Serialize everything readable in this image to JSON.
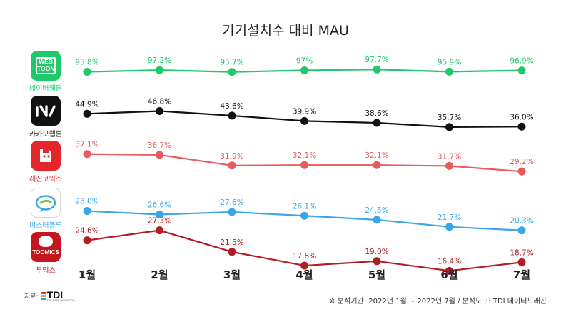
{
  "chart_data": {
    "type": "line",
    "title": "기기설치수 대비 MAU",
    "categories": [
      "1월",
      "2월",
      "3월",
      "4월",
      "5월",
      "6월",
      "7월"
    ],
    "value_suffix": "%",
    "series": [
      {
        "name": "네이버웹툰",
        "color": "#1ec96a",
        "values": [
          95.8,
          97.2,
          95.7,
          97,
          97.7,
          95.9,
          96.9
        ]
      },
      {
        "name": "카카오웹툰",
        "color": "#111111",
        "values": [
          44.9,
          46.8,
          43.6,
          39.9,
          38.6,
          35.7,
          36.0
        ]
      },
      {
        "name": "레진코믹스",
        "color": "#e85a5e",
        "values": [
          37.1,
          36.7,
          31.9,
          32.1,
          32.1,
          31.7,
          29.2
        ]
      },
      {
        "name": "미스터블루",
        "color": "#3ba6e6",
        "values": [
          28.0,
          26.6,
          27.6,
          26.1,
          24.5,
          21.7,
          20.3
        ]
      },
      {
        "name": "투믹스",
        "color": "#b01e24",
        "values": [
          24.6,
          27.3,
          21.5,
          17.8,
          19.0,
          16.4,
          18.7
        ]
      }
    ],
    "point_labels": [
      [
        "95.8%",
        "97.2%",
        "95.7%",
        "97%",
        "97.7%",
        "95.9%",
        "96.9%"
      ],
      [
        "44.9%",
        "46.8%",
        "43.6%",
        "39.9%",
        "38.6%",
        "35.7%",
        "36.0%"
      ],
      [
        "37.1%",
        "36.7%",
        "31.9%",
        "32.1%",
        "32.1%",
        "31.7%",
        "29.2%"
      ],
      [
        "28.0%",
        "26.6%",
        "27.6%",
        "26.1%",
        "24.5%",
        "21.7%",
        "20.3%"
      ],
      [
        "24.6%",
        "27.3%",
        "21.5%",
        "17.8%",
        "19.0%",
        "16.4%",
        "18.7%"
      ]
    ],
    "grid": false,
    "legend": "left (app icons)"
  },
  "apps": [
    {
      "name": "네이버웹툰",
      "icon": "webtoon-icon",
      "icon_text": "WEB\nTOON",
      "color": "#1ec96a"
    },
    {
      "name": "카카오웹툰",
      "icon": "kakao-webtoon-icon",
      "icon_text": "",
      "color": "#111111"
    },
    {
      "name": "레진코믹스",
      "icon": "lezhin-icon",
      "icon_text": "",
      "color": "#e2262b"
    },
    {
      "name": "미스터블루",
      "icon": "mrblue-icon",
      "icon_text": "",
      "color": "#3ba6e6"
    },
    {
      "name": "투믹스",
      "icon": "toomics-icon",
      "icon_text": "TOOMICS",
      "color": "#c4161c"
    }
  ],
  "source": {
    "prefix": "자료:",
    "logo_text": "TDI",
    "logo_sub": "THE DATA INCUBATOR"
  },
  "footnote": "※ 분석기간: 2022년 1월 ~ 2022년 7월  / 분석도구: TDI 데이터드래곤"
}
